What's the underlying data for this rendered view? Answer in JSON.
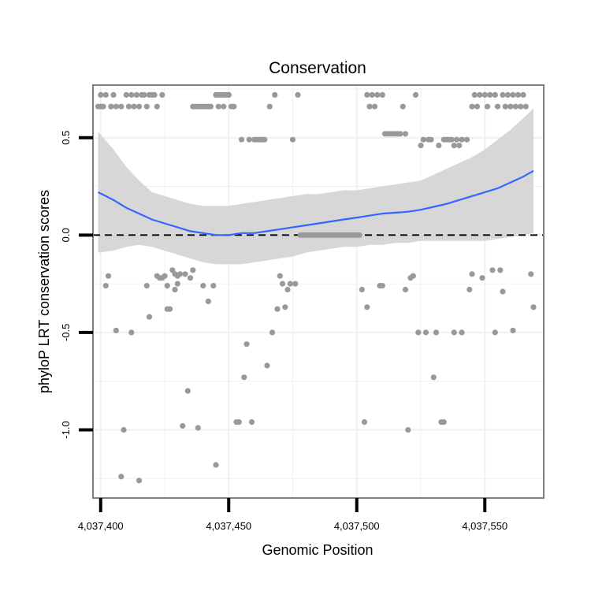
{
  "colors": {
    "background": "#ffffff",
    "panel_border": "#7f7f7f",
    "grid": "#f0f0f0",
    "points": "#999999",
    "smooth_line": "#3366ff",
    "confidence_band": "#d3d3d3",
    "reference_line": "#000000"
  },
  "chart_data": {
    "type": "scatter",
    "title": "Conservation",
    "xlabel": "Genomic Position",
    "ylabel": "phyloP LRT conservation scores",
    "xlim": [
      4037397,
      4037573
    ],
    "ylim": [
      -1.35,
      0.77
    ],
    "x_ticks": [
      {
        "value": 4037400,
        "label": "4,037,400"
      },
      {
        "value": 4037450,
        "label": "4,037,450"
      },
      {
        "value": 4037500,
        "label": "4,037,500"
      },
      {
        "value": 4037550,
        "label": "4,037,550"
      }
    ],
    "y_ticks": [
      {
        "value": 0.5,
        "label": "0.5"
      },
      {
        "value": 0.0,
        "label": "0.0"
      },
      {
        "value": -0.5,
        "label": "-0.5"
      },
      {
        "value": -1.0,
        "label": "-1.0"
      }
    ],
    "minor_x_grid": [
      4037425,
      4037475,
      4037525,
      4037575
    ],
    "minor_y_grid": [
      0.75,
      0.25,
      -0.25,
      -0.75,
      -1.25
    ],
    "reference_line": {
      "y": 0,
      "style": "dashed"
    },
    "points": [
      [
        4037399,
        0.66
      ],
      [
        4037400,
        0.72
      ],
      [
        4037400,
        0.66
      ],
      [
        4037401,
        0.66
      ],
      [
        4037402,
        0.72
      ],
      [
        4037402,
        -0.26
      ],
      [
        4037403,
        -0.21
      ],
      [
        4037404,
        0.66
      ],
      [
        4037405,
        0.72
      ],
      [
        4037406,
        0.66
      ],
      [
        4037406,
        -0.49
      ],
      [
        4037408,
        0.66
      ],
      [
        4037408,
        -1.24
      ],
      [
        4037409,
        -1.0
      ],
      [
        4037410,
        0.72
      ],
      [
        4037411,
        0.66
      ],
      [
        4037412,
        0.72
      ],
      [
        4037412,
        -0.5
      ],
      [
        4037413,
        0.66
      ],
      [
        4037414,
        0.72
      ],
      [
        4037415,
        0.66
      ],
      [
        4037415,
        -1.26
      ],
      [
        4037416,
        0.72
      ],
      [
        4037417,
        0.72
      ],
      [
        4037418,
        0.66
      ],
      [
        4037418,
        -0.26
      ],
      [
        4037419,
        0.72
      ],
      [
        4037419,
        -0.42
      ],
      [
        4037420,
        0.72
      ],
      [
        4037421,
        0.72
      ],
      [
        4037422,
        0.66
      ],
      [
        4037422,
        -0.21
      ],
      [
        4037423,
        -0.22
      ],
      [
        4037424,
        0.72
      ],
      [
        4037424,
        -0.22
      ],
      [
        4037425,
        -0.21
      ],
      [
        4037426,
        -0.26
      ],
      [
        4037426,
        -0.38
      ],
      [
        4037427,
        -0.38
      ],
      [
        4037428,
        -0.18
      ],
      [
        4037429,
        -0.28
      ],
      [
        4037429,
        -0.2
      ],
      [
        4037430,
        -0.25
      ],
      [
        4037430,
        -0.21
      ],
      [
        4037431,
        -0.2
      ],
      [
        4037432,
        -0.98
      ],
      [
        4037433,
        -0.2
      ],
      [
        4037434,
        -0.8
      ],
      [
        4037435,
        -0.22
      ],
      [
        4037436,
        0.66
      ],
      [
        4037436,
        -0.18
      ],
      [
        4037437,
        0.66
      ],
      [
        4037438,
        -0.99
      ],
      [
        4037438,
        0.66
      ],
      [
        4037439,
        0.66
      ],
      [
        4037440,
        0.66
      ],
      [
        4037440,
        -0.26
      ],
      [
        4037441,
        0.66
      ],
      [
        4037442,
        0.66
      ],
      [
        4037442,
        -0.34
      ],
      [
        4037443,
        0.66
      ],
      [
        4037444,
        -0.26
      ],
      [
        4037445,
        0.72
      ],
      [
        4037445,
        -1.18
      ],
      [
        4037446,
        0.72
      ],
      [
        4037446,
        0.66
      ],
      [
        4037447,
        0.72
      ],
      [
        4037448,
        0.66
      ],
      [
        4037448,
        0.72
      ],
      [
        4037449,
        0.72
      ],
      [
        4037450,
        0.72
      ],
      [
        4037450,
        0.72
      ],
      [
        4037451,
        0.66
      ],
      [
        4037452,
        0.66
      ],
      [
        4037453,
        -0.96
      ],
      [
        4037454,
        -0.96
      ],
      [
        4037455,
        0.49
      ],
      [
        4037456,
        -0.73
      ],
      [
        4037457,
        -0.56
      ],
      [
        4037458,
        0.49
      ],
      [
        4037459,
        -0.96
      ],
      [
        4037460,
        0.49
      ],
      [
        4037461,
        0.49
      ],
      [
        4037462,
        0.49
      ],
      [
        4037463,
        0.49
      ],
      [
        4037464,
        0.49
      ],
      [
        4037465,
        -0.67
      ],
      [
        4037466,
        0.66
      ],
      [
        4037467,
        -0.5
      ],
      [
        4037468,
        0.72
      ],
      [
        4037469,
        -0.38
      ],
      [
        4037470,
        -0.21
      ],
      [
        4037471,
        -0.25
      ],
      [
        4037472,
        -0.37
      ],
      [
        4037473,
        -0.28
      ],
      [
        4037474,
        -0.25
      ],
      [
        4037475,
        0.49
      ],
      [
        4037476,
        -0.25
      ],
      [
        4037477,
        0.72
      ],
      [
        4037478,
        0.0
      ],
      [
        4037479,
        0.0
      ],
      [
        4037480,
        0.0
      ],
      [
        4037481,
        0.0
      ],
      [
        4037482,
        0.0
      ],
      [
        4037483,
        0.0
      ],
      [
        4037484,
        0.0
      ],
      [
        4037485,
        0.0
      ],
      [
        4037486,
        0.0
      ],
      [
        4037487,
        0.0
      ],
      [
        4037488,
        0.0
      ],
      [
        4037489,
        0.0
      ],
      [
        4037490,
        0.0
      ],
      [
        4037491,
        0.0
      ],
      [
        4037492,
        0.0
      ],
      [
        4037493,
        0.0
      ],
      [
        4037494,
        0.0
      ],
      [
        4037495,
        0.0
      ],
      [
        4037496,
        0.0
      ],
      [
        4037497,
        0.0
      ],
      [
        4037498,
        0.0
      ],
      [
        4037499,
        0.0
      ],
      [
        4037500,
        0.0
      ],
      [
        4037501,
        0.0
      ],
      [
        4037502,
        -0.28
      ],
      [
        4037503,
        -0.96
      ],
      [
        4037504,
        0.72
      ],
      [
        4037504,
        -0.37
      ],
      [
        4037505,
        0.66
      ],
      [
        4037506,
        0.72
      ],
      [
        4037507,
        0.66
      ],
      [
        4037508,
        0.72
      ],
      [
        4037509,
        -0.26
      ],
      [
        4037510,
        0.72
      ],
      [
        4037510,
        -0.26
      ],
      [
        4037511,
        0.52
      ],
      [
        4037512,
        0.52
      ],
      [
        4037513,
        0.52
      ],
      [
        4037514,
        0.52
      ],
      [
        4037515,
        0.52
      ],
      [
        4037516,
        0.52
      ],
      [
        4037517,
        0.52
      ],
      [
        4037518,
        0.66
      ],
      [
        4037519,
        0.52
      ],
      [
        4037519,
        -0.28
      ],
      [
        4037520,
        -1.0
      ],
      [
        4037521,
        -0.22
      ],
      [
        4037522,
        -0.21
      ],
      [
        4037523,
        0.72
      ],
      [
        4037524,
        -0.5
      ],
      [
        4037525,
        0.46
      ],
      [
        4037526,
        0.49
      ],
      [
        4037527,
        -0.5
      ],
      [
        4037528,
        0.49
      ],
      [
        4037529,
        0.49
      ],
      [
        4037530,
        -0.73
      ],
      [
        4037531,
        -0.5
      ],
      [
        4037532,
        0.46
      ],
      [
        4037533,
        -0.96
      ],
      [
        4037534,
        -0.96
      ],
      [
        4037534,
        0.49
      ],
      [
        4037535,
        0.49
      ],
      [
        4037536,
        0.49
      ],
      [
        4037537,
        0.49
      ],
      [
        4037538,
        0.46
      ],
      [
        4037538,
        -0.5
      ],
      [
        4037539,
        0.49
      ],
      [
        4037540,
        0.46
      ],
      [
        4037541,
        -0.5
      ],
      [
        4037541,
        0.49
      ],
      [
        4037543,
        0.49
      ],
      [
        4037544,
        -0.28
      ],
      [
        4037545,
        0.66
      ],
      [
        4037545,
        -0.2
      ],
      [
        4037546,
        0.72
      ],
      [
        4037547,
        0.66
      ],
      [
        4037548,
        0.72
      ],
      [
        4037549,
        -0.22
      ],
      [
        4037550,
        0.72
      ],
      [
        4037551,
        0.66
      ],
      [
        4037552,
        0.72
      ],
      [
        4037553,
        -0.18
      ],
      [
        4037554,
        0.72
      ],
      [
        4037554,
        -0.5
      ],
      [
        4037555,
        0.66
      ],
      [
        4037556,
        -0.18
      ],
      [
        4037557,
        0.72
      ],
      [
        4037557,
        -0.29
      ],
      [
        4037558,
        0.66
      ],
      [
        4037559,
        0.72
      ],
      [
        4037560,
        0.66
      ],
      [
        4037561,
        0.72
      ],
      [
        4037561,
        -0.49
      ],
      [
        4037562,
        0.66
      ],
      [
        4037563,
        0.72
      ],
      [
        4037564,
        0.66
      ],
      [
        4037565,
        0.72
      ],
      [
        4037566,
        0.66
      ],
      [
        4037568,
        -0.2
      ],
      [
        4037569,
        -0.37
      ]
    ],
    "smooth": {
      "x": [
        4037399,
        4037405,
        4037410,
        4037415,
        4037420,
        4037425,
        4037430,
        4037435,
        4037440,
        4037445,
        4037450,
        4037455,
        4037460,
        4037465,
        4037470,
        4037475,
        4037480,
        4037485,
        4037490,
        4037495,
        4037500,
        4037505,
        4037510,
        4037515,
        4037520,
        4037525,
        4037530,
        4037535,
        4037540,
        4037545,
        4037550,
        4037555,
        4037560,
        4037565,
        4037569
      ],
      "y": [
        0.22,
        0.18,
        0.14,
        0.11,
        0.08,
        0.06,
        0.04,
        0.02,
        0.01,
        0.0,
        0.0,
        0.01,
        0.01,
        0.02,
        0.03,
        0.04,
        0.05,
        0.06,
        0.07,
        0.08,
        0.09,
        0.1,
        0.11,
        0.115,
        0.12,
        0.13,
        0.145,
        0.16,
        0.18,
        0.2,
        0.22,
        0.24,
        0.27,
        0.3,
        0.33
      ],
      "lower": [
        -0.09,
        -0.08,
        -0.06,
        -0.05,
        -0.06,
        -0.08,
        -0.1,
        -0.12,
        -0.14,
        -0.15,
        -0.15,
        -0.15,
        -0.14,
        -0.13,
        -0.12,
        -0.11,
        -0.09,
        -0.08,
        -0.07,
        -0.06,
        -0.06,
        -0.05,
        -0.05,
        -0.04,
        -0.04,
        -0.03,
        -0.03,
        -0.03,
        -0.03,
        -0.03,
        -0.03,
        -0.02,
        -0.01,
        0.0,
        0.01
      ],
      "upper": [
        0.53,
        0.44,
        0.35,
        0.28,
        0.22,
        0.2,
        0.18,
        0.16,
        0.15,
        0.15,
        0.15,
        0.16,
        0.17,
        0.18,
        0.19,
        0.2,
        0.21,
        0.21,
        0.22,
        0.23,
        0.23,
        0.24,
        0.25,
        0.26,
        0.27,
        0.28,
        0.31,
        0.34,
        0.37,
        0.4,
        0.44,
        0.49,
        0.54,
        0.6,
        0.65
      ]
    }
  }
}
